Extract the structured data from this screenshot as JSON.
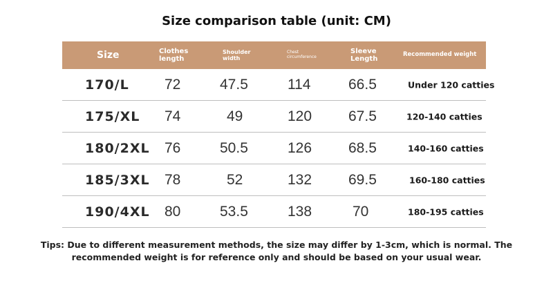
{
  "title": "Size comparison table (unit: CM)",
  "table": {
    "headers": {
      "size": "Size",
      "length": [
        "Clothes",
        "length"
      ],
      "shoulder": [
        "Shoulder",
        "width"
      ],
      "chest": [
        "Chest",
        "circumference"
      ],
      "sleeve": [
        "Sleeve",
        "Length"
      ],
      "weight": "Recommended weight"
    },
    "rows": [
      {
        "size": "170/L",
        "length": "72",
        "shoulder": "47.5",
        "chest": "114",
        "sleeve": "66.5",
        "weight": "Under 120 catties"
      },
      {
        "size": "175/XL",
        "length": "74",
        "shoulder": "49",
        "chest": "120",
        "sleeve": "67.5",
        "weight": "120-140 catties"
      },
      {
        "size": "180/2XL",
        "length": "76",
        "shoulder": "50.5",
        "chest": "126",
        "sleeve": "68.5",
        "weight": "140-160 catties"
      },
      {
        "size": "185/3XL",
        "length": "78",
        "shoulder": "52",
        "chest": "132",
        "sleeve": "69.5",
        "weight": "160-180 catties"
      },
      {
        "size": "190/4XL",
        "length": "80",
        "shoulder": "53.5",
        "chest": "138",
        "sleeve": "70",
        "weight": "180-195 catties"
      }
    ]
  },
  "tips": [
    "Tips: Due to different measurement methods, the size may differ by 1-3cm, which is normal. The",
    "recommended weight is for reference only and should be based on your usual wear."
  ],
  "colors": {
    "header_bg": "#c99a76",
    "header_text": "#ffffff",
    "row_border": "#bdbdbd"
  }
}
